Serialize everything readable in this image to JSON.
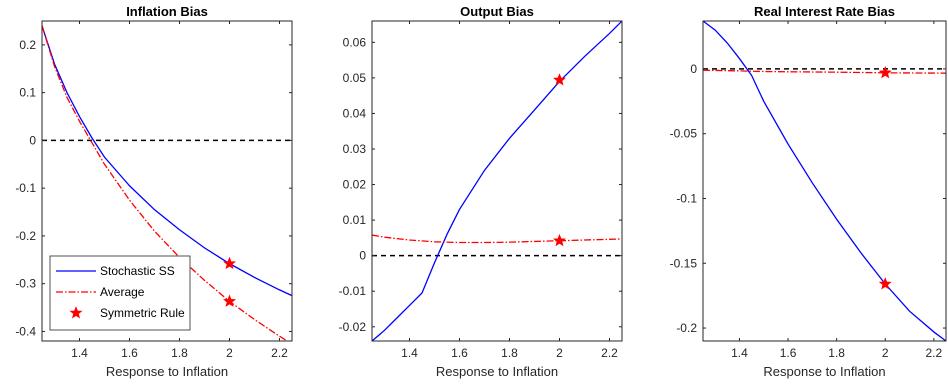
{
  "colors": {
    "stochastic": "#0000ff",
    "average": "#ff0000",
    "zero_line": "#000000",
    "axes": "#262626"
  },
  "chart_data": [
    {
      "type": "line",
      "title": "Inflation Bias",
      "xlabel": "Response to Inflation",
      "ylabel": "",
      "xlim": [
        1.25,
        2.25
      ],
      "ylim": [
        -0.42,
        0.25
      ],
      "xticks": [
        1.4,
        1.6,
        1.8,
        2,
        2.2
      ],
      "xtick_labels": [
        "1.4",
        "1.6",
        "1.8",
        "2",
        "2.2"
      ],
      "yticks": [
        0.2,
        0.1,
        0,
        -0.1,
        -0.2,
        -0.3,
        -0.4
      ],
      "ytick_labels": [
        "0.2",
        "0.1",
        "0",
        "-0.1",
        "-0.2",
        "-0.3",
        "-0.4"
      ],
      "grid": false,
      "zero_line": 0,
      "legend": {
        "placement": "bottom-left",
        "entries": [
          "Stochastic SS",
          "Average",
          "Symmetric Rule"
        ]
      },
      "series": [
        {
          "name": "Stochastic SS",
          "style": "solid",
          "x": [
            1.25,
            1.3,
            1.35,
            1.4,
            1.45,
            1.5,
            1.6,
            1.7,
            1.8,
            1.9,
            2.0,
            2.1,
            2.2,
            2.25
          ],
          "y": [
            0.24,
            0.16,
            0.1,
            0.05,
            0.005,
            -0.035,
            -0.095,
            -0.145,
            -0.187,
            -0.225,
            -0.258,
            -0.287,
            -0.313,
            -0.325
          ]
        },
        {
          "name": "Average",
          "style": "dashdot",
          "x": [
            1.25,
            1.3,
            1.35,
            1.4,
            1.45,
            1.5,
            1.6,
            1.7,
            1.8,
            1.9,
            2.0,
            2.1,
            2.2,
            2.25
          ],
          "y": [
            0.24,
            0.155,
            0.09,
            0.04,
            -0.005,
            -0.05,
            -0.125,
            -0.19,
            -0.245,
            -0.293,
            -0.337,
            -0.375,
            -0.41,
            -0.426
          ]
        }
      ],
      "markers": {
        "name": "Symmetric Rule",
        "symbol": "star",
        "points": [
          {
            "x": 2,
            "y": -0.258
          },
          {
            "x": 2,
            "y": -0.337
          }
        ]
      }
    },
    {
      "type": "line",
      "title": "Output Bias",
      "xlabel": "Response to Inflation",
      "ylabel": "",
      "xlim": [
        1.25,
        2.25
      ],
      "ylim": [
        -0.024,
        0.066
      ],
      "xticks": [
        1.4,
        1.6,
        1.8,
        2,
        2.2
      ],
      "xtick_labels": [
        "1.4",
        "1.6",
        "1.8",
        "2",
        "2.2"
      ],
      "yticks": [
        0.06,
        0.05,
        0.04,
        0.03,
        0.02,
        0.01,
        0,
        -0.01,
        -0.02
      ],
      "ytick_labels": [
        "0.06",
        "0.05",
        "0.04",
        "0.03",
        "0.02",
        "0.01",
        "0",
        "-0.01",
        "-0.02"
      ],
      "grid": false,
      "zero_line": 0,
      "series": [
        {
          "name": "Stochastic SS",
          "style": "solid",
          "x": [
            1.25,
            1.3,
            1.35,
            1.4,
            1.45,
            1.5,
            1.55,
            1.6,
            1.7,
            1.8,
            1.9,
            2.0,
            2.1,
            2.2,
            2.25
          ],
          "y": [
            -0.024,
            -0.021,
            -0.0175,
            -0.014,
            -0.0105,
            -0.002,
            0.006,
            0.013,
            0.024,
            0.033,
            0.041,
            0.049,
            0.056,
            0.0625,
            0.066
          ]
        },
        {
          "name": "Average",
          "style": "dashdot",
          "x": [
            1.25,
            1.3,
            1.4,
            1.5,
            1.6,
            1.7,
            1.8,
            1.9,
            2.0,
            2.1,
            2.2,
            2.25
          ],
          "y": [
            0.0058,
            0.0052,
            0.0044,
            0.0039,
            0.0037,
            0.0037,
            0.0038,
            0.004,
            0.0042,
            0.0044,
            0.0046,
            0.0047
          ]
        }
      ],
      "markers": {
        "name": "Symmetric Rule",
        "symbol": "star",
        "points": [
          {
            "x": 2,
            "y": 0.0494
          },
          {
            "x": 2,
            "y": 0.0042
          }
        ]
      }
    },
    {
      "type": "line",
      "title": "Real Interest Rate Bias",
      "xlabel": "Response to Inflation",
      "ylabel": "",
      "xlim": [
        1.25,
        2.25
      ],
      "ylim": [
        -0.21,
        0.037
      ],
      "xticks": [
        1.4,
        1.6,
        1.8,
        2,
        2.2
      ],
      "xtick_labels": [
        "1.4",
        "1.6",
        "1.8",
        "2",
        "2.2"
      ],
      "yticks": [
        0,
        -0.05,
        -0.1,
        -0.15,
        -0.2
      ],
      "ytick_labels": [
        "0",
        "-0.05",
        "-0.1",
        "-0.15",
        "-0.2"
      ],
      "grid": false,
      "zero_line": 0,
      "series": [
        {
          "name": "Stochastic SS",
          "style": "solid",
          "x": [
            1.25,
            1.3,
            1.35,
            1.4,
            1.45,
            1.5,
            1.6,
            1.7,
            1.8,
            1.9,
            2.0,
            2.1,
            2.2,
            2.25
          ],
          "y": [
            0.037,
            0.03,
            0.02,
            0.008,
            -0.005,
            -0.025,
            -0.058,
            -0.088,
            -0.116,
            -0.142,
            -0.166,
            -0.187,
            -0.203,
            -0.21
          ]
        },
        {
          "name": "Average",
          "style": "dashdot",
          "x": [
            1.25,
            1.4,
            1.5,
            1.6,
            1.8,
            2.0,
            2.2,
            2.25
          ],
          "y": [
            -0.001,
            -0.0015,
            -0.002,
            -0.0022,
            -0.0025,
            -0.003,
            -0.0032,
            -0.0033
          ]
        }
      ],
      "markers": {
        "name": "Symmetric Rule",
        "symbol": "star",
        "points": [
          {
            "x": 2,
            "y": -0.166
          },
          {
            "x": 2,
            "y": -0.003
          }
        ]
      }
    }
  ]
}
